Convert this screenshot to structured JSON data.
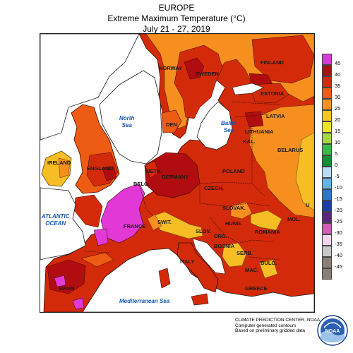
{
  "header": {
    "region": "EUROPE",
    "title": "Extreme Maximum Temperature (°C)",
    "period": "July 21 - 27, 2019"
  },
  "map": {
    "countries": {
      "norway": "NORWAY",
      "sweden": "SWEDEN",
      "finland": "FINLAND",
      "estonia": "ESTONIA",
      "latvia": "LATVIA",
      "lithuania": "LITHUANIA",
      "kaliningrad": "KAL.",
      "belarus": "BELARUS",
      "denmark": "DEN.",
      "ireland": "IRELAND",
      "england": "ENGLAND",
      "netherlands": "NETH.",
      "belgium": "BELG.",
      "germany": "GERMANY",
      "poland": "POLAND",
      "czech": "CZECH.",
      "slovakia": "SLOVAK.",
      "hungary": "HUNG.",
      "france": "FRANCE",
      "switzerland": "SWIT.",
      "slovenia": "SLOV.",
      "croatia": "CRO.",
      "bosnia": "BOSNIA",
      "romania": "ROMANIA",
      "moldova": "MOL.",
      "serbia": "SERB.",
      "italy": "ITALY",
      "spain": "SPAIN",
      "bulgaria": "BULG.",
      "macedonia": "MAC.",
      "greece": "GREECE",
      "ukraine_fragment": "U"
    },
    "seas": {
      "north_sea_1": "North",
      "north_sea_2": "Sea",
      "baltic_1": "Baltic",
      "baltic_2": "Sea",
      "atlantic_1": "ATLANTIC",
      "atlantic_2": "OCEAN",
      "mediterranean": "Mediterranean Sea"
    },
    "colors": {
      "above_45": "#e138d6",
      "40_45": "#b10d10",
      "35_40": "#d32a0a",
      "30_35": "#ee5b13",
      "25_30": "#f78f1f",
      "20_25": "#f7bd24"
    }
  },
  "legend": {
    "items": [
      {
        "label": "45",
        "color": "#d53cd2"
      },
      {
        "label": "40",
        "color": "#a51410"
      },
      {
        "label": "35",
        "color": "#d42a10"
      },
      {
        "label": "30",
        "color": "#f05a14"
      },
      {
        "label": "25",
        "color": "#f8921e"
      },
      {
        "label": "20",
        "color": "#f9c621"
      },
      {
        "label": "15",
        "color": "#ebe422"
      },
      {
        "label": "10",
        "color": "#a6d83e"
      },
      {
        "label": "5",
        "color": "#3cb84a"
      },
      {
        "label": "0",
        "color": "#118c36"
      },
      {
        "label": "-5",
        "color": "#b6dcf2"
      },
      {
        "label": "-10",
        "color": "#64b4e6"
      },
      {
        "label": "-15",
        "color": "#2f74c8"
      },
      {
        "label": "-20",
        "color": "#1a3ea2"
      },
      {
        "label": "-25",
        "color": "#5a287a"
      },
      {
        "label": "-30",
        "color": "#cf5fb7"
      },
      {
        "label": "-35",
        "color": "#f3d6ec"
      },
      {
        "label": "-40",
        "color": "#c8c8c8"
      },
      {
        "label": "-45",
        "color": "#8a7f78"
      },
      {
        "label": "",
        "color": "#8a7f78"
      }
    ]
  },
  "credits": {
    "line1": "CLIMATE PREDICTION CENTER, NOAA",
    "line2": "Computer generated contours",
    "line3": "Based on preliminary gridded data"
  },
  "logo": {
    "text": "NOAA"
  }
}
